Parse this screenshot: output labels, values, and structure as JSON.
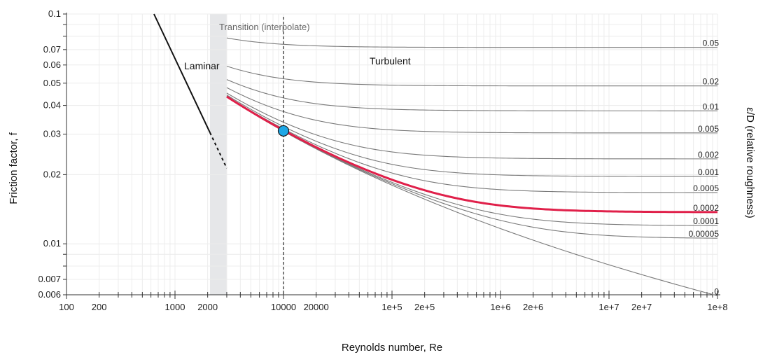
{
  "chart_data": {
    "type": "line",
    "x_scale": "log",
    "y_scale": "log",
    "xlabel": "Reynolds number, Re",
    "ylabel": "Friction factor, f",
    "y2label": "ε/D (relative roughness)",
    "xlim": [
      100,
      100000000
    ],
    "ylim": [
      0.006,
      0.1
    ],
    "grid": true,
    "x_ticks": [
      {
        "value": 100,
        "label": "100"
      },
      {
        "value": 200,
        "label": "200"
      },
      {
        "value": 1000,
        "label": "1000"
      },
      {
        "value": 2000,
        "label": "2000"
      },
      {
        "value": 10000,
        "label": "10000"
      },
      {
        "value": 20000,
        "label": "20000"
      },
      {
        "value": 100000,
        "label": "1e+5"
      },
      {
        "value": 200000,
        "label": "2e+5"
      },
      {
        "value": 1000000,
        "label": "1e+6"
      },
      {
        "value": 2000000,
        "label": "2e+6"
      },
      {
        "value": 10000000,
        "label": "1e+7"
      },
      {
        "value": 20000000,
        "label": "2e+7"
      },
      {
        "value": 100000000,
        "label": "1e+8"
      }
    ],
    "y_ticks": [
      {
        "value": 0.1,
        "label": "0.1"
      },
      {
        "value": 0.07,
        "label": "0.07"
      },
      {
        "value": 0.06,
        "label": "0.06"
      },
      {
        "value": 0.05,
        "label": "0.05"
      },
      {
        "value": 0.04,
        "label": "0.04"
      },
      {
        "value": 0.03,
        "label": "0.03"
      },
      {
        "value": 0.02,
        "label": "0.02"
      },
      {
        "value": 0.01,
        "label": "0.01"
      },
      {
        "value": 0.007,
        "label": "0.007"
      },
      {
        "value": 0.006,
        "label": "0.006"
      }
    ],
    "annotations": {
      "laminar": "Laminar",
      "turbulent": "Turbulent",
      "transition": "Transition (interpolate)"
    },
    "transition_band": [
      2100,
      3000
    ],
    "laminar_line": {
      "x_start": 640,
      "x_solid_end": 2100,
      "x_dashed_end": 3000
    },
    "turbulent_x_start": 3000,
    "roughness_series": [
      {
        "label": "0.05",
        "value": 0.05
      },
      {
        "label": "0.02",
        "value": 0.02
      },
      {
        "label": "0.01",
        "value": 0.01
      },
      {
        "label": "0.005",
        "value": 0.005
      },
      {
        "label": "0.002",
        "value": 0.002
      },
      {
        "label": "0.001",
        "value": 0.001
      },
      {
        "label": "0.0005",
        "value": 0.0005
      },
      {
        "label": "0.0002",
        "value": 0.0002,
        "highlight": true
      },
      {
        "label": "0.0001",
        "value": 0.0001
      },
      {
        "label": "0.00005",
        "value": 5e-05
      },
      {
        "label": "0",
        "value": 0
      }
    ],
    "selected_point": {
      "Re": 10000,
      "f": 0.031
    },
    "colors": {
      "highlight": "#e0204a",
      "curve": "#7a7a7a",
      "laminar": "#111111",
      "band": "#e6e7e9",
      "point": "#1ea7e6",
      "grid": "#ececec"
    }
  }
}
